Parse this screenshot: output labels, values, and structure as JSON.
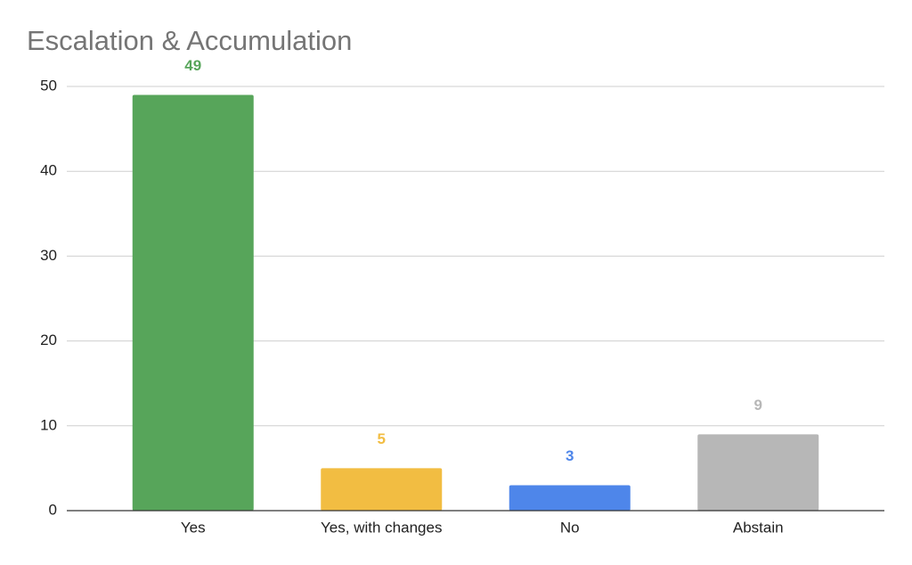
{
  "chart_data": {
    "type": "bar",
    "title": "Escalation & Accumulation",
    "categories": [
      "Yes",
      "Yes, with changes",
      "No",
      "Abstain"
    ],
    "values": [
      49,
      5,
      3,
      9
    ],
    "colors": [
      "#57a55a",
      "#f2bd42",
      "#4e86ea",
      "#b7b7b7"
    ],
    "ylim": [
      0,
      50
    ],
    "yticks": [
      0,
      10,
      20,
      30,
      40,
      50
    ],
    "grid": true,
    "data_labels": true
  }
}
